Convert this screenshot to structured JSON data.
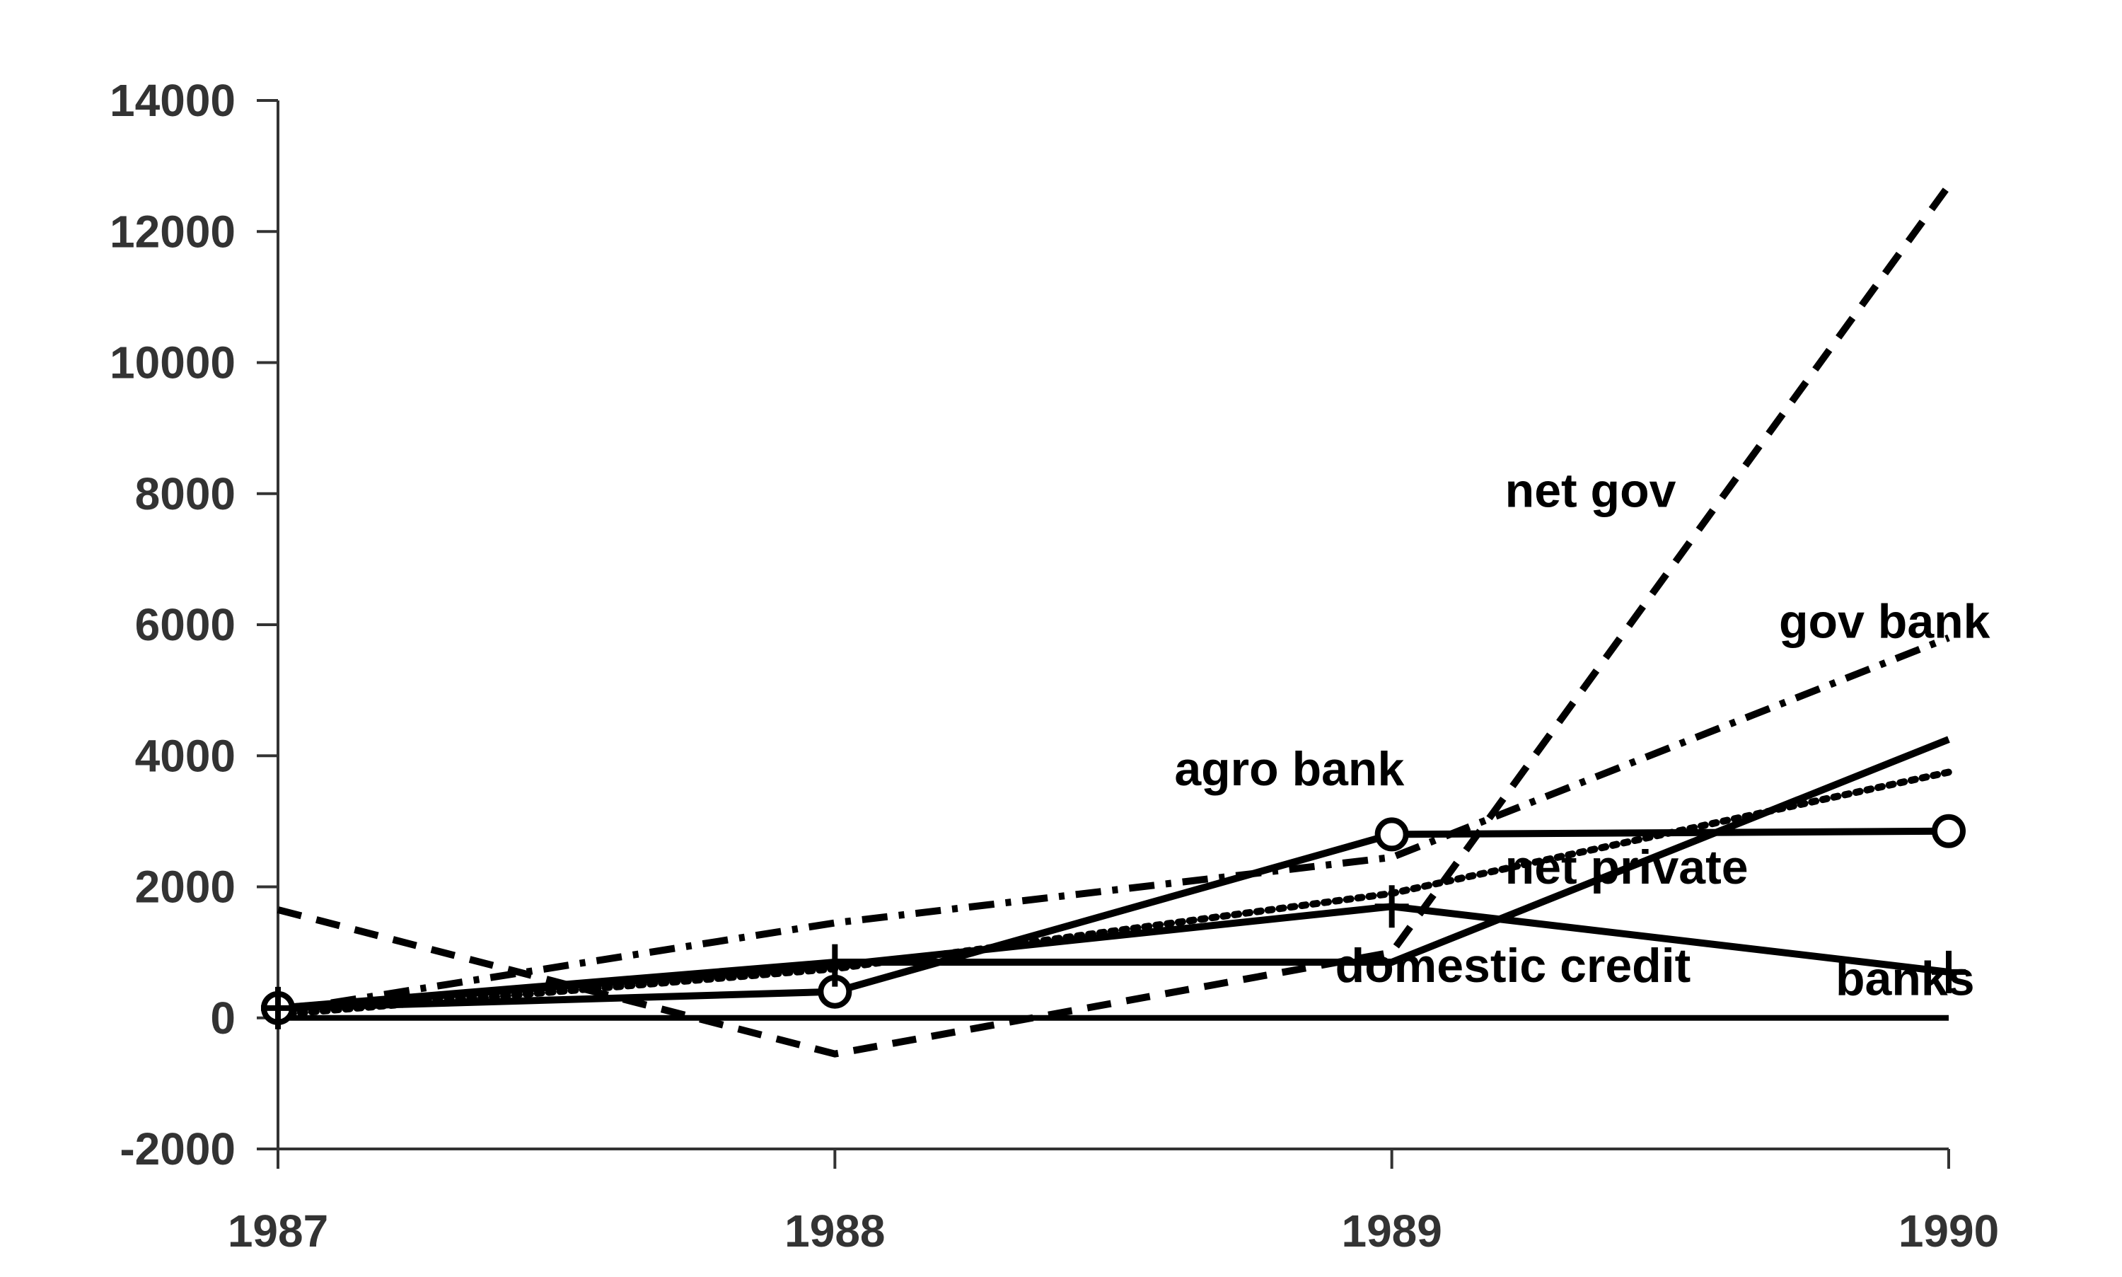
{
  "chart_data": {
    "type": "line",
    "title": "",
    "xlabel": "",
    "ylabel": "",
    "categories": [
      "1987",
      "1988",
      "1989",
      "1990"
    ],
    "ylim": [
      -2000,
      14000
    ],
    "yticks": [
      "14000",
      "12000",
      "10000",
      "8000",
      "6000",
      "4000",
      "2000",
      "0",
      "-2000"
    ],
    "grid": false,
    "legend": "none",
    "series": [
      {
        "name": "net gov",
        "values": [
          1650,
          -550,
          1000,
          12700
        ],
        "style": "dashed",
        "marker": "none"
      },
      {
        "name": "gov bank",
        "values": [
          100,
          1450,
          2450,
          5800
        ],
        "style": "dashdot",
        "marker": "none"
      },
      {
        "name": "net private",
        "values": [
          50,
          750,
          1900,
          3750
        ],
        "style": "dotted",
        "marker": "none"
      },
      {
        "name": "domestic credit",
        "values": [
          150,
          850,
          850,
          4250
        ],
        "style": "solid",
        "marker": "none"
      },
      {
        "name": "agro bank",
        "values": [
          150,
          400,
          2800,
          2850
        ],
        "style": "solid",
        "marker": "circle"
      },
      {
        "name": "banks",
        "values": [
          150,
          800,
          1700,
          700
        ],
        "style": "solid",
        "marker": "plus"
      },
      {
        "name": "",
        "values": [
          0,
          0,
          0,
          0
        ],
        "style": "solid",
        "marker": "none"
      }
    ],
    "annotations": [
      {
        "text": "net gov",
        "x": "1989",
        "y": 7800
      },
      {
        "text": "gov bank",
        "x": "1990",
        "y": 5800
      },
      {
        "text": "agro bank",
        "x": "1988",
        "y": 3550
      },
      {
        "text": "net private",
        "x": "1989",
        "y": 2050
      },
      {
        "text": "domestic credit",
        "x": "1989",
        "y": 550
      },
      {
        "text": "banks",
        "x": "1990",
        "y": 350
      }
    ],
    "colors": {
      "lines": "#000000",
      "axis": "#333333",
      "text": "#333333"
    }
  }
}
